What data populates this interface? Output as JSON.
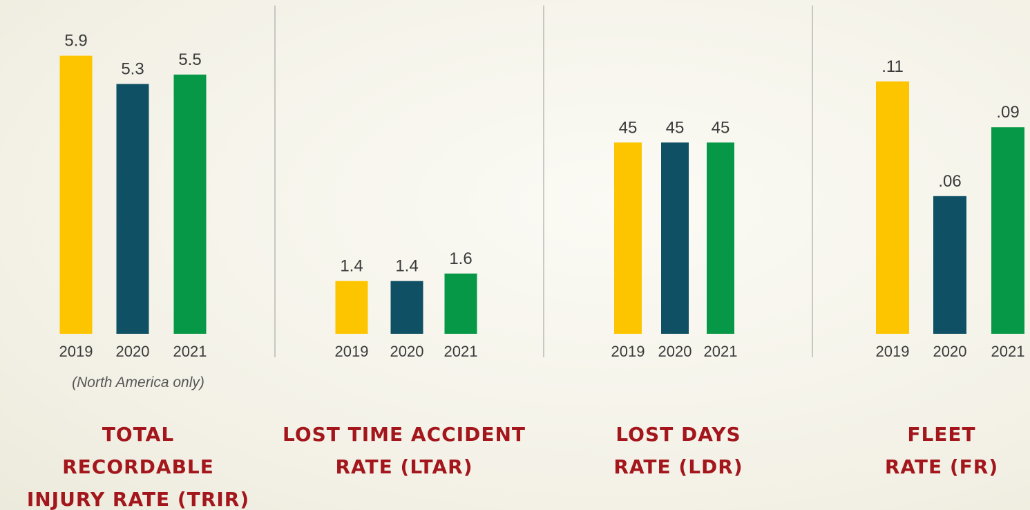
{
  "chart_data": [
    {
      "type": "bar",
      "title": [
        "TOTAL",
        "RECORDABLE",
        "INJURY RATE (TRIR)"
      ],
      "note": "(North America only)",
      "categories": [
        "2019",
        "2020",
        "2021"
      ],
      "values": [
        5.9,
        5.3,
        5.5
      ],
      "colors": [
        "#fdc500",
        "#0f5064",
        "#079847"
      ]
    },
    {
      "type": "bar",
      "title": [
        "LOST TIME ACCIDENT",
        "RATE (LTAR)"
      ],
      "categories": [
        "2019",
        "2020",
        "2021"
      ],
      "values": [
        1.4,
        1.4,
        1.6
      ],
      "colors": [
        "#fdc500",
        "#0f5064",
        "#079847"
      ]
    },
    {
      "type": "bar",
      "title": [
        "LOST DAYS",
        "RATE (LDR)"
      ],
      "categories": [
        "2019",
        "2020",
        "2021"
      ],
      "values": [
        45,
        45,
        45
      ],
      "colors": [
        "#fdc500",
        "#0f5064",
        "#079847"
      ]
    },
    {
      "type": "bar",
      "title": [
        "FLEET",
        "RATE (FR)"
      ],
      "categories": [
        "2019",
        "2020",
        "2021"
      ],
      "values": [
        0.11,
        0.06,
        0.09
      ],
      "value_labels": [
        ".11",
        ".06",
        ".09"
      ],
      "colors": [
        "#fdc500",
        "#0f5064",
        "#079847"
      ]
    }
  ]
}
